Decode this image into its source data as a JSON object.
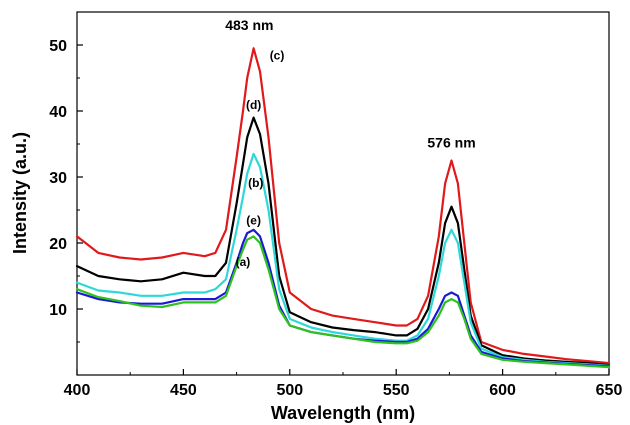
{
  "chart_data": {
    "type": "line",
    "title": "",
    "xlabel": "Wavelength (nm)",
    "ylabel": "Intensity (a.u.)",
    "xlim": [
      400,
      650
    ],
    "ylim": [
      0,
      55
    ],
    "xticks": [
      400,
      450,
      500,
      550,
      600,
      650
    ],
    "yticks": [
      10,
      20,
      30,
      40,
      50
    ],
    "grid": false,
    "legend": "none",
    "x": [
      400,
      410,
      420,
      430,
      440,
      450,
      460,
      465,
      470,
      475,
      478,
      480,
      483,
      486,
      490,
      495,
      500,
      510,
      520,
      530,
      540,
      550,
      555,
      560,
      565,
      570,
      573,
      576,
      579,
      582,
      585,
      590,
      600,
      610,
      620,
      630,
      640,
      650
    ],
    "series": [
      {
        "name": "(c)",
        "color": "#e0191b",
        "values": [
          21,
          18.5,
          17.8,
          17.5,
          17.8,
          18.5,
          18.0,
          18.5,
          22.0,
          33.0,
          40.0,
          45.0,
          49.5,
          46.0,
          36.0,
          20.0,
          12.5,
          10.0,
          9.0,
          8.5,
          8.0,
          7.5,
          7.5,
          8.5,
          12.0,
          21.0,
          29.0,
          32.5,
          29.0,
          20.0,
          11.0,
          5.0,
          3.8,
          3.2,
          2.8,
          2.4,
          2.1,
          1.8
        ]
      },
      {
        "name": "(d)",
        "color": "#000000",
        "values": [
          16.5,
          15.0,
          14.5,
          14.2,
          14.5,
          15.5,
          15.0,
          15.0,
          17.0,
          26.0,
          32.0,
          36.0,
          39.0,
          36.5,
          29.0,
          15.0,
          9.5,
          8.0,
          7.2,
          6.8,
          6.5,
          6.0,
          6.0,
          7.0,
          10.0,
          17.0,
          23.0,
          25.5,
          23.0,
          16.0,
          9.0,
          4.5,
          3.0,
          2.5,
          2.2,
          2.0,
          1.8,
          1.5
        ]
      },
      {
        "name": "(b)",
        "color": "#2ed8d8",
        "values": [
          14.0,
          12.8,
          12.5,
          12.0,
          12.0,
          12.5,
          12.5,
          13.0,
          14.5,
          22.0,
          27.0,
          30.5,
          33.5,
          31.5,
          25.0,
          13.0,
          8.5,
          7.2,
          6.5,
          6.0,
          5.5,
          5.2,
          5.2,
          6.0,
          8.5,
          15.0,
          20.0,
          22.0,
          20.0,
          14.0,
          8.0,
          4.0,
          2.7,
          2.3,
          2.0,
          1.8,
          1.6,
          1.4
        ]
      },
      {
        "name": "(e)",
        "color": "#1a1ad6",
        "values": [
          12.5,
          11.5,
          11.0,
          10.8,
          10.8,
          11.5,
          11.5,
          11.5,
          12.5,
          17.0,
          20.0,
          21.5,
          22.0,
          21.0,
          17.0,
          10.5,
          7.5,
          6.5,
          6.0,
          5.5,
          5.2,
          5.0,
          5.0,
          5.5,
          7.0,
          10.0,
          12.0,
          12.5,
          12.0,
          9.0,
          6.0,
          3.5,
          2.5,
          2.1,
          1.9,
          1.7,
          1.5,
          1.3
        ]
      },
      {
        "name": "(a)",
        "color": "#2fc21f",
        "values": [
          13.0,
          11.8,
          11.2,
          10.5,
          10.3,
          11.0,
          11.0,
          11.0,
          12.0,
          16.5,
          19.0,
          20.5,
          21.0,
          20.0,
          16.0,
          10.0,
          7.5,
          6.5,
          6.0,
          5.5,
          5.0,
          4.8,
          4.8,
          5.2,
          6.5,
          9.0,
          11.0,
          11.5,
          11.0,
          8.5,
          5.5,
          3.2,
          2.3,
          2.0,
          1.8,
          1.6,
          1.4,
          1.2
        ]
      }
    ],
    "annotations": [
      {
        "text": "483 nm",
        "x": 481,
        "y": 52.3
      },
      {
        "text": "576 nm",
        "x": 576,
        "y": 34.5
      }
    ],
    "curve_labels": [
      {
        "text": "(c)",
        "x": 494,
        "y": 47.8
      },
      {
        "text": "(d)",
        "x": 483,
        "y": 40.3
      },
      {
        "text": "(b)",
        "x": 484,
        "y": 28.5
      },
      {
        "text": "(e)",
        "x": 483,
        "y": 22.8
      },
      {
        "text": "(a)",
        "x": 478,
        "y": 16.5
      }
    ]
  }
}
